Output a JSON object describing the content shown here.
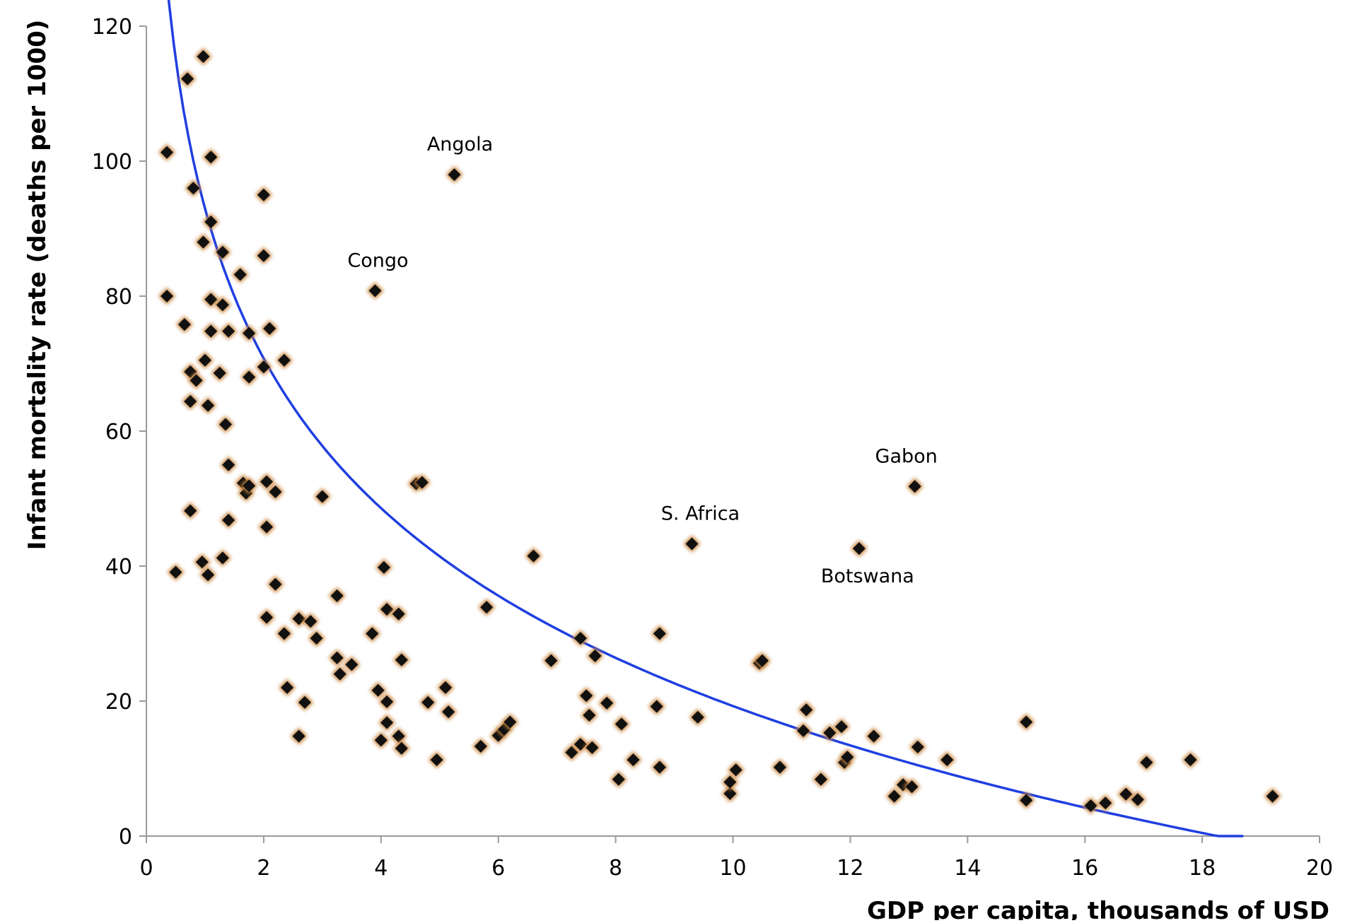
{
  "chart_data": {
    "type": "scatter",
    "title": "",
    "xlabel": "GDP per capita, thousands of USD",
    "ylabel": "Infant mortality rate (deaths per 1000)",
    "xlim": [
      0,
      20
    ],
    "ylim": [
      0,
      120
    ],
    "x_ticks": [
      0,
      2,
      4,
      6,
      8,
      10,
      12,
      14,
      16,
      18,
      20
    ],
    "y_ticks": [
      0,
      20,
      40,
      60,
      80,
      100,
      120
    ],
    "grid": false,
    "legend": "none",
    "colors": {
      "marker": "#111111",
      "marker_glow": "#c8843c",
      "trend": "#1f3fe0",
      "axis": "#9a9a9a"
    },
    "points": [
      [
        0.97,
        115.5
      ],
      [
        0.7,
        112.2
      ],
      [
        0.35,
        101.3
      ],
      [
        1.1,
        100.6
      ],
      [
        0.8,
        96.0
      ],
      [
        2.0,
        95.0
      ],
      [
        1.1,
        91.0
      ],
      [
        0.97,
        88.0
      ],
      [
        1.3,
        86.5
      ],
      [
        2.0,
        86.0
      ],
      [
        1.6,
        83.2
      ],
      [
        0.35,
        80.0
      ],
      [
        1.1,
        79.5
      ],
      [
        1.3,
        78.7
      ],
      [
        0.65,
        75.8
      ],
      [
        1.1,
        74.8
      ],
      [
        1.4,
        74.8
      ],
      [
        1.75,
        74.5
      ],
      [
        2.1,
        75.2
      ],
      [
        2.35,
        70.5
      ],
      [
        1.0,
        70.5
      ],
      [
        2.0,
        69.5
      ],
      [
        0.75,
        68.8
      ],
      [
        0.85,
        67.5
      ],
      [
        1.25,
        68.6
      ],
      [
        1.75,
        68.0
      ],
      [
        0.75,
        64.4
      ],
      [
        1.05,
        63.8
      ],
      [
        1.35,
        61.0
      ],
      [
        1.4,
        55.0
      ],
      [
        1.65,
        52.3
      ],
      [
        1.7,
        50.8
      ],
      [
        1.75,
        51.9
      ],
      [
        2.05,
        52.5
      ],
      [
        2.2,
        51.0
      ],
      [
        1.4,
        46.8
      ],
      [
        2.05,
        45.8
      ],
      [
        0.75,
        48.2
      ],
      [
        0.5,
        39.1
      ],
      [
        0.95,
        40.6
      ],
      [
        1.05,
        38.7
      ],
      [
        1.3,
        41.2
      ],
      [
        2.2,
        37.3
      ],
      [
        2.05,
        32.4
      ],
      [
        2.35,
        30.0
      ],
      [
        2.6,
        32.2
      ],
      [
        2.8,
        31.8
      ],
      [
        2.9,
        29.3
      ],
      [
        3.0,
        50.3
      ],
      [
        3.25,
        35.6
      ],
      [
        3.25,
        26.4
      ],
      [
        3.3,
        24.0
      ],
      [
        3.5,
        25.4
      ],
      [
        2.4,
        22.0
      ],
      [
        2.7,
        19.8
      ],
      [
        2.6,
        14.8
      ],
      [
        3.9,
        80.8
      ],
      [
        3.85,
        30.0
      ],
      [
        4.05,
        39.8
      ],
      [
        4.1,
        33.6
      ],
      [
        4.3,
        32.9
      ],
      [
        4.35,
        26.1
      ],
      [
        3.95,
        21.6
      ],
      [
        4.1,
        19.9
      ],
      [
        4.1,
        16.8
      ],
      [
        4.0,
        14.2
      ],
      [
        4.3,
        14.8
      ],
      [
        4.35,
        13.0
      ],
      [
        4.6,
        52.2
      ],
      [
        4.7,
        52.4
      ],
      [
        5.25,
        98.0
      ],
      [
        4.8,
        19.8
      ],
      [
        5.1,
        22.0
      ],
      [
        5.15,
        18.4
      ],
      [
        4.95,
        11.3
      ],
      [
        5.8,
        33.9
      ],
      [
        5.7,
        13.3
      ],
      [
        6.0,
        14.9
      ],
      [
        6.1,
        15.8
      ],
      [
        6.2,
        16.9
      ],
      [
        6.6,
        41.5
      ],
      [
        6.9,
        26.0
      ],
      [
        7.25,
        12.4
      ],
      [
        7.4,
        29.3
      ],
      [
        7.4,
        13.6
      ],
      [
        7.5,
        20.8
      ],
      [
        7.55,
        17.9
      ],
      [
        7.6,
        13.1
      ],
      [
        7.65,
        26.7
      ],
      [
        7.85,
        19.7
      ],
      [
        8.05,
        8.4
      ],
      [
        8.1,
        16.6
      ],
      [
        8.3,
        11.3
      ],
      [
        8.7,
        19.2
      ],
      [
        8.75,
        30.0
      ],
      [
        8.75,
        10.2
      ],
      [
        9.3,
        43.3
      ],
      [
        9.4,
        17.6
      ],
      [
        9.95,
        6.3
      ],
      [
        9.95,
        8.0
      ],
      [
        10.05,
        9.8
      ],
      [
        10.45,
        25.6
      ],
      [
        10.5,
        26.0
      ],
      [
        10.8,
        10.2
      ],
      [
        11.2,
        15.6
      ],
      [
        11.25,
        18.7
      ],
      [
        11.5,
        8.4
      ],
      [
        11.65,
        15.3
      ],
      [
        11.85,
        16.2
      ],
      [
        11.9,
        10.9
      ],
      [
        11.95,
        11.7
      ],
      [
        12.15,
        42.6
      ],
      [
        12.4,
        14.8
      ],
      [
        12.75,
        5.9
      ],
      [
        12.9,
        7.6
      ],
      [
        13.05,
        7.3
      ],
      [
        13.1,
        51.8
      ],
      [
        13.15,
        13.2
      ],
      [
        13.65,
        11.3
      ],
      [
        15.0,
        16.9
      ],
      [
        15.0,
        5.3
      ],
      [
        16.1,
        4.5
      ],
      [
        16.35,
        4.9
      ],
      [
        16.7,
        6.2
      ],
      [
        16.9,
        5.4
      ],
      [
        17.05,
        10.9
      ],
      [
        17.8,
        11.3
      ],
      [
        19.2,
        5.9
      ]
    ],
    "trendline": {
      "type": "logarithmic",
      "x_range": [
        0.3,
        18.7
      ]
    },
    "annotations": [
      {
        "text": "Angola",
        "x": 5.25,
        "y": 98.0
      },
      {
        "text": "Congo",
        "x": 3.9,
        "y": 80.8
      },
      {
        "text": "Gabon",
        "x": 13.1,
        "y": 51.8
      },
      {
        "text": "S. Africa",
        "x": 9.3,
        "y": 43.3
      },
      {
        "text": "Botswana",
        "x": 12.15,
        "y": 42.6
      }
    ]
  }
}
